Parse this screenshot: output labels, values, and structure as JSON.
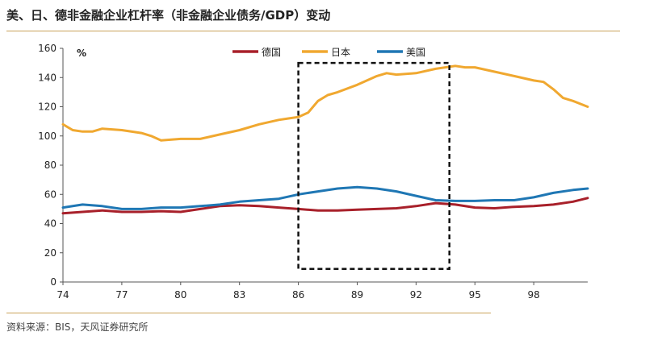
{
  "title": "美、日、德非金融企业杠杆率（非金融企业债务/GDP）变动",
  "source": "资料来源：BIS，天风证券研究所",
  "chart_data": {
    "type": "line",
    "title": "美、日、德非金融企业杠杆率（非金融企业债务/GDP）变动",
    "ylabel": "%",
    "xlabel": "",
    "x_ticks": [
      "74",
      "77",
      "80",
      "83",
      "86",
      "89",
      "92",
      "95",
      "98"
    ],
    "y_ticks": [
      0,
      20,
      40,
      60,
      80,
      100,
      120,
      140,
      160
    ],
    "ylim": [
      0,
      160
    ],
    "xlim": [
      1974,
      2000.75
    ],
    "legend_position": "top-center",
    "grid": false,
    "highlight_box": {
      "x_start": 1986.0,
      "x_end": 1993.7,
      "y_start": 9,
      "y_end": 150
    },
    "series": [
      {
        "name": "德国",
        "color": "#a8202a",
        "points": [
          [
            1974,
            47
          ],
          [
            1975,
            48
          ],
          [
            1976,
            49
          ],
          [
            1977,
            48
          ],
          [
            1978,
            48
          ],
          [
            1979,
            48.5
          ],
          [
            1980,
            48
          ],
          [
            1981,
            50
          ],
          [
            1982,
            52
          ],
          [
            1983,
            52.5
          ],
          [
            1984,
            52
          ],
          [
            1985,
            51
          ],
          [
            1986,
            50
          ],
          [
            1987,
            49
          ],
          [
            1988,
            49
          ],
          [
            1989,
            49.5
          ],
          [
            1990,
            50
          ],
          [
            1991,
            50.5
          ],
          [
            1992,
            52
          ],
          [
            1993,
            54
          ],
          [
            1994,
            53
          ],
          [
            1995,
            51
          ],
          [
            1996,
            50.5
          ],
          [
            1997,
            51.5
          ],
          [
            1998,
            52
          ],
          [
            1999,
            53
          ],
          [
            2000,
            55
          ],
          [
            2000.75,
            57.5
          ]
        ]
      },
      {
        "name": "日本",
        "color": "#f0a830",
        "points": [
          [
            1974,
            108
          ],
          [
            1974.5,
            104
          ],
          [
            1975,
            103
          ],
          [
            1975.5,
            103
          ],
          [
            1976,
            105
          ],
          [
            1977,
            104
          ],
          [
            1978,
            102
          ],
          [
            1978.5,
            100
          ],
          [
            1979,
            97
          ],
          [
            1980,
            98
          ],
          [
            1981,
            98
          ],
          [
            1982,
            101
          ],
          [
            1983,
            104
          ],
          [
            1984,
            108
          ],
          [
            1985,
            111
          ],
          [
            1985.5,
            112
          ],
          [
            1986,
            113
          ],
          [
            1986.5,
            116
          ],
          [
            1987,
            124
          ],
          [
            1987.5,
            128
          ],
          [
            1988,
            130
          ],
          [
            1989,
            135
          ],
          [
            1990,
            141
          ],
          [
            1990.5,
            143
          ],
          [
            1991,
            142
          ],
          [
            1992,
            143
          ],
          [
            1993,
            146
          ],
          [
            1994,
            148
          ],
          [
            1994.5,
            147
          ],
          [
            1995,
            147
          ],
          [
            1996,
            144
          ],
          [
            1997,
            141
          ],
          [
            1998,
            138
          ],
          [
            1998.5,
            137
          ],
          [
            1999,
            132
          ],
          [
            1999.5,
            126
          ],
          [
            2000,
            124
          ],
          [
            2000.75,
            120
          ]
        ]
      },
      {
        "name": "美国",
        "color": "#1f77b4",
        "points": [
          [
            1974,
            51
          ],
          [
            1975,
            53
          ],
          [
            1976,
            52
          ],
          [
            1977,
            50
          ],
          [
            1978,
            50
          ],
          [
            1979,
            51
          ],
          [
            1980,
            51
          ],
          [
            1981,
            52
          ],
          [
            1982,
            53
          ],
          [
            1983,
            55
          ],
          [
            1984,
            56
          ],
          [
            1985,
            57
          ],
          [
            1986,
            60
          ],
          [
            1987,
            62
          ],
          [
            1988,
            64
          ],
          [
            1989,
            65
          ],
          [
            1990,
            64
          ],
          [
            1991,
            62
          ],
          [
            1992,
            59
          ],
          [
            1993,
            56
          ],
          [
            1994,
            55.5
          ],
          [
            1995,
            55.5
          ],
          [
            1996,
            56
          ],
          [
            1997,
            56
          ],
          [
            1998,
            58
          ],
          [
            1999,
            61
          ],
          [
            2000,
            63
          ],
          [
            2000.75,
            64
          ]
        ]
      }
    ]
  }
}
